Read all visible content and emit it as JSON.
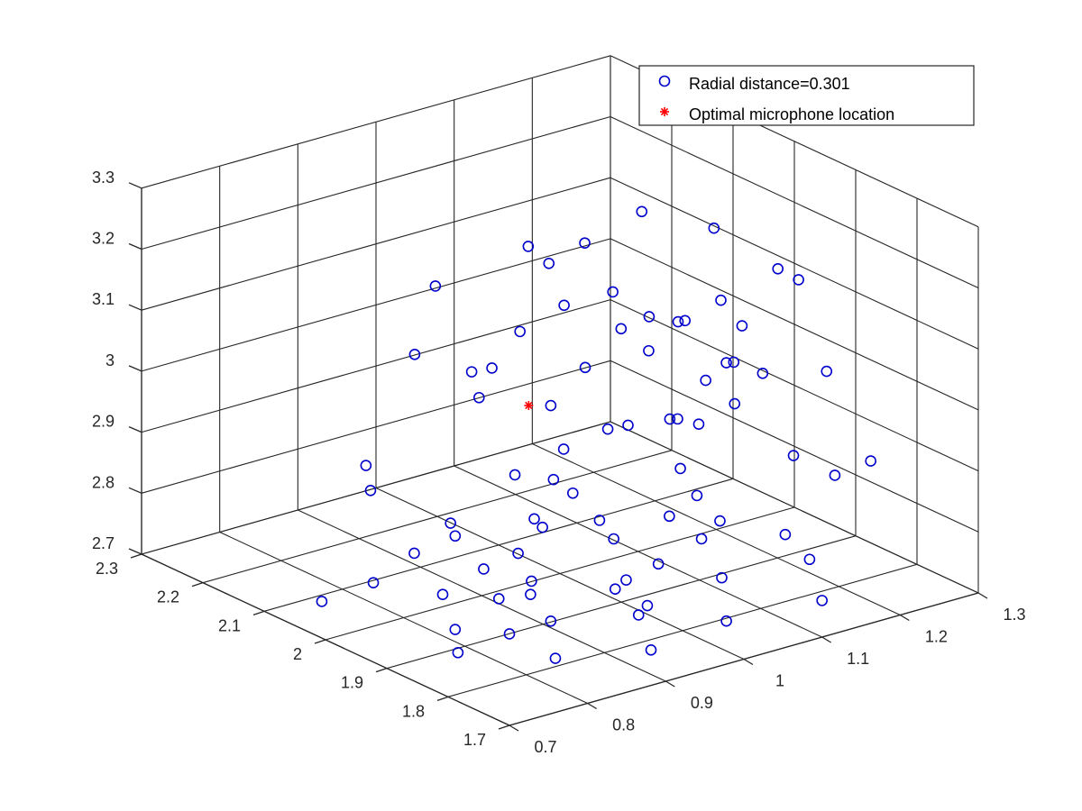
{
  "chart_data": {
    "type": "scatter",
    "title": "",
    "xlabel": "",
    "ylabel": "",
    "zlabel": "",
    "view": "3d",
    "grid": true,
    "legend_position": "top-right",
    "xlim": [
      0.7,
      1.3
    ],
    "ylim": [
      1.7,
      2.3
    ],
    "zlim": [
      2.7,
      3.3
    ],
    "x_ticks": [
      "0.7",
      "0.8",
      "0.9",
      "1",
      "1.1",
      "1.2",
      "1.3"
    ],
    "y_ticks": [
      "1.7",
      "1.8",
      "1.9",
      "2",
      "2.1",
      "2.2",
      "2.3"
    ],
    "z_ticks": [
      "2.7",
      "2.8",
      "2.9",
      "3",
      "3.1",
      "3.2",
      "3.3"
    ],
    "series": [
      {
        "name": "Radial distance=0.301",
        "marker": "circle",
        "color": "#0000cc",
        "points_projected_xz_over_y": [
          [
            0.7,
            2.85
          ],
          [
            0.7,
            2.83
          ],
          [
            0.7,
            2.78
          ],
          [
            0.7,
            2.76
          ],
          [
            0.71,
            2.9
          ],
          [
            0.71,
            2.89
          ],
          [
            0.72,
            2.96
          ],
          [
            0.72,
            2.95
          ],
          [
            0.78,
            2.94
          ],
          [
            0.78,
            2.91
          ],
          [
            0.8,
            3.16
          ],
          [
            0.8,
            3.14
          ],
          [
            0.82,
            3.0
          ],
          [
            0.82,
            2.99
          ],
          [
            0.84,
            3.08
          ],
          [
            0.84,
            3.06
          ],
          [
            0.85,
            3.22
          ],
          [
            0.85,
            3.21
          ],
          [
            0.88,
            3.11
          ],
          [
            0.88,
            3.1
          ],
          [
            0.92,
            3.05
          ],
          [
            0.92,
            3.04
          ],
          [
            0.93,
            3.21
          ],
          [
            0.93,
            3.2
          ],
          [
            0.95,
            3.26
          ],
          [
            0.95,
            3.25
          ],
          [
            0.98,
            3.29
          ],
          [
            0.98,
            3.28
          ],
          [
            1.0,
            3.21
          ],
          [
            1.0,
            3.2
          ],
          [
            1.02,
            3.17
          ],
          [
            1.02,
            3.16
          ],
          [
            1.05,
            3.1
          ],
          [
            1.05,
            3.08
          ],
          [
            1.07,
            2.99
          ],
          [
            1.07,
            2.97
          ],
          [
            1.1,
            3.27
          ],
          [
            1.1,
            3.26
          ],
          [
            1.12,
            3.13
          ],
          [
            1.12,
            3.12
          ],
          [
            1.15,
            3.24
          ],
          [
            1.15,
            3.22
          ],
          [
            1.17,
            3.04
          ],
          [
            1.17,
            3.02
          ],
          [
            1.2,
            2.93
          ],
          [
            1.2,
            2.92
          ],
          [
            1.22,
            2.86
          ],
          [
            1.22,
            2.84
          ],
          [
            0.8,
            2.72
          ],
          [
            0.82,
            2.73
          ],
          [
            0.85,
            2.72
          ],
          [
            0.88,
            2.73
          ],
          [
            0.9,
            2.74
          ],
          [
            0.92,
            2.72
          ],
          [
            0.95,
            2.74
          ],
          [
            0.97,
            2.73
          ],
          [
            1.0,
            2.74
          ],
          [
            1.02,
            2.73
          ],
          [
            1.05,
            2.75
          ],
          [
            1.08,
            2.74
          ],
          [
            1.1,
            2.76
          ],
          [
            1.12,
            2.75
          ],
          [
            1.15,
            2.77
          ],
          [
            1.18,
            2.76
          ],
          [
            0.86,
            2.8
          ],
          [
            0.9,
            2.81
          ],
          [
            0.94,
            2.82
          ],
          [
            0.98,
            2.81
          ],
          [
            1.02,
            2.83
          ],
          [
            1.06,
            2.82
          ],
          [
            1.1,
            2.84
          ],
          [
            1.14,
            2.83
          ],
          [
            0.78,
            2.86
          ],
          [
            0.84,
            2.87
          ],
          [
            0.96,
            2.88
          ],
          [
            1.04,
            2.87
          ],
          [
            1.16,
            2.89
          ],
          [
            1.2,
            2.88
          ],
          [
            0.76,
            3.0
          ],
          [
            1.18,
            3.0
          ]
        ]
      },
      {
        "name": "Optimal microphone location",
        "marker": "asterisk",
        "color": "#ff0000",
        "points_projected_xz_over_y": [
          [
            0.96,
            2.99
          ]
        ]
      }
    ]
  }
}
